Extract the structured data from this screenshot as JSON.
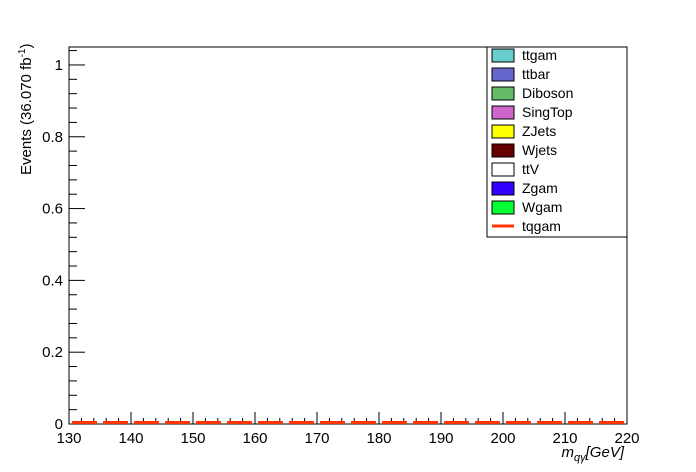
{
  "chart_data": {
    "type": "bar",
    "xlabel_main": "m",
    "xlabel_sub": "qγ",
    "xlabel_unit": "[GeV]",
    "ylabel_main": "Events (36.070 fb",
    "ylabel_sup": "-1",
    "ylabel_end": ")",
    "xlim": [
      130,
      220
    ],
    "ylim": [
      0,
      1.05
    ],
    "x_ticks": [
      130,
      140,
      150,
      160,
      170,
      180,
      190,
      200,
      210,
      220
    ],
    "y_ticks": [
      0,
      0.2,
      0.4,
      0.6,
      0.8,
      1
    ],
    "y_tick_labels": [
      "0",
      "0.2",
      "0.4",
      "0.6",
      "0.8",
      "1"
    ],
    "bin_edges": [
      130,
      135,
      140,
      145,
      150,
      155,
      160,
      165,
      170,
      175,
      180,
      185,
      190,
      195,
      200,
      205,
      210,
      215,
      220
    ],
    "signal_line": {
      "name": "tqgam",
      "color": "#ff3300",
      "values": [
        0,
        0,
        0,
        0,
        0,
        0,
        0,
        0,
        0,
        0,
        0,
        0,
        0,
        0,
        0,
        0,
        0,
        0
      ]
    },
    "legend": [
      {
        "name": "ttgam",
        "color": "#66cccc",
        "kind": "box"
      },
      {
        "name": "ttbar",
        "color": "#6666cc",
        "kind": "box"
      },
      {
        "name": "Diboson",
        "color": "#66bb66",
        "kind": "box"
      },
      {
        "name": "SingTop",
        "color": "#cc66cc",
        "kind": "box"
      },
      {
        "name": "ZJets",
        "color": "#ffff00",
        "kind": "box"
      },
      {
        "name": "Wjets",
        "color": "#660000",
        "kind": "box"
      },
      {
        "name": "ttV",
        "color": "#ffffff",
        "kind": "box"
      },
      {
        "name": "Zgam",
        "color": "#3300ff",
        "kind": "box"
      },
      {
        "name": "Wgam",
        "color": "#00ff33",
        "kind": "box"
      },
      {
        "name": "tqgam",
        "color": "#ff3300",
        "kind": "line"
      }
    ],
    "legend_position": "top-right",
    "grid": false
  }
}
